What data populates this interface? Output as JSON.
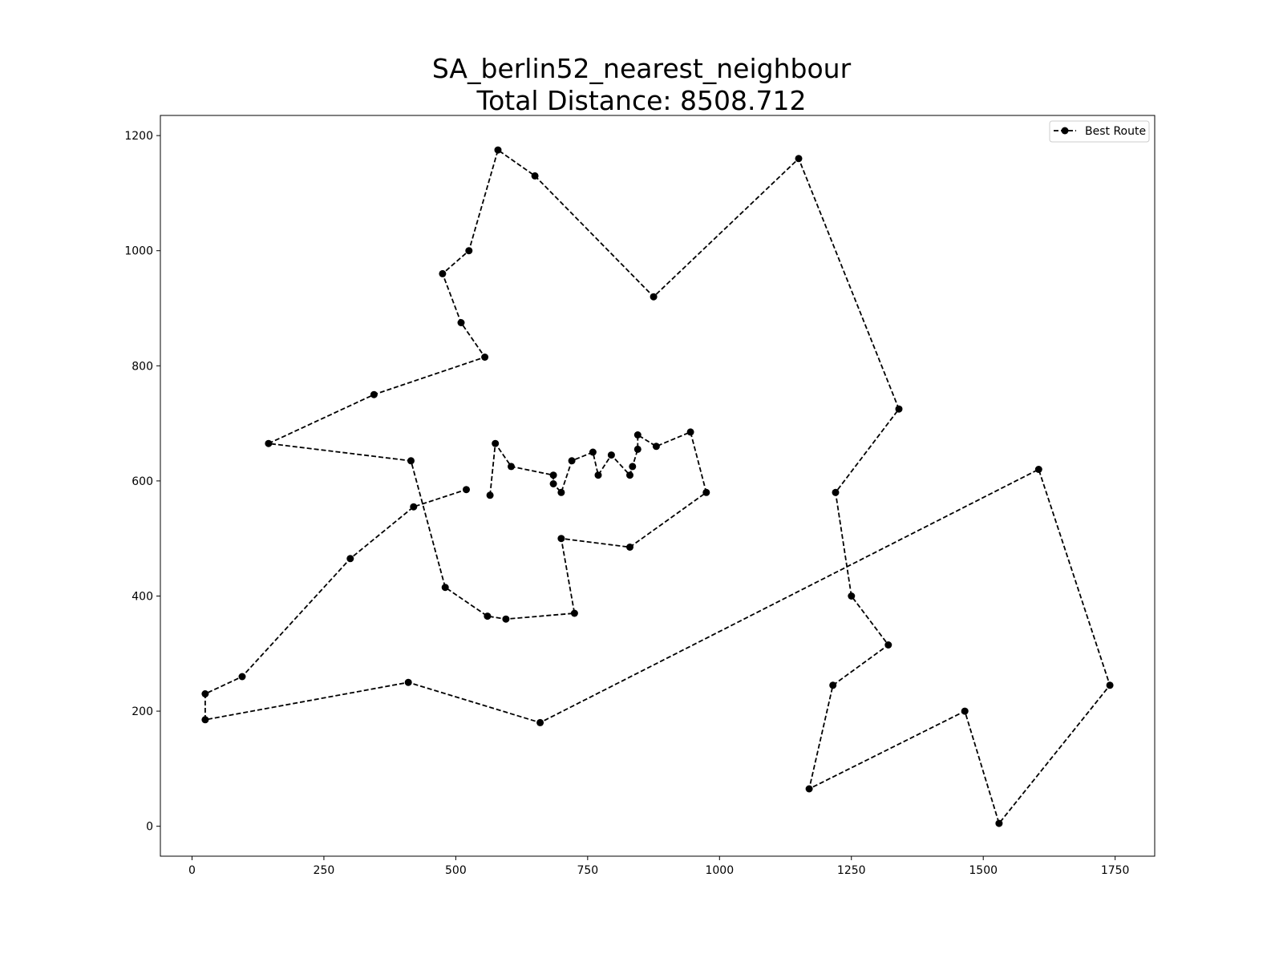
{
  "chart_data": {
    "type": "line",
    "title": "SA_berlin52_nearest_neighbour",
    "subtitle": "Total Distance: 8508.712",
    "xlabel": "",
    "ylabel": "",
    "xlim": [
      -60,
      1825
    ],
    "ylim": [
      -52,
      1235
    ],
    "xticks": [
      0,
      250,
      500,
      750,
      1000,
      1250,
      1500,
      1750
    ],
    "yticks": [
      0,
      200,
      400,
      600,
      800,
      1000,
      1200
    ],
    "grid": false,
    "legend_position": "top-right",
    "series": [
      {
        "name": "Best Route",
        "color": "#000000",
        "line_style": "dashed",
        "marker": "circle",
        "points": [
          [
            565,
            575
          ],
          [
            575,
            665
          ],
          [
            605,
            625
          ],
          [
            685,
            610
          ],
          [
            685,
            595
          ],
          [
            700,
            580
          ],
          [
            720,
            635
          ],
          [
            760,
            650
          ],
          [
            770,
            610
          ],
          [
            795,
            645
          ],
          [
            830,
            610
          ],
          [
            835,
            625
          ],
          [
            845,
            655
          ],
          [
            845,
            680
          ],
          [
            880,
            660
          ],
          [
            945,
            685
          ],
          [
            975,
            580
          ],
          [
            830,
            485
          ],
          [
            700,
            500
          ],
          [
            725,
            370
          ],
          [
            595,
            360
          ],
          [
            560,
            365
          ],
          [
            480,
            415
          ],
          [
            415,
            635
          ],
          [
            145,
            665
          ],
          [
            345,
            750
          ],
          [
            555,
            815
          ],
          [
            510,
            875
          ],
          [
            475,
            960
          ],
          [
            525,
            1000
          ],
          [
            580,
            1175
          ],
          [
            650,
            1130
          ],
          [
            875,
            920
          ],
          [
            1150,
            1160
          ],
          [
            1340,
            725
          ],
          [
            1220,
            580
          ],
          [
            1250,
            400
          ],
          [
            1320,
            315
          ],
          [
            1215,
            245
          ],
          [
            1170,
            65
          ],
          [
            1465,
            200
          ],
          [
            1530,
            5
          ],
          [
            1740,
            245
          ],
          [
            1605,
            620
          ],
          [
            660,
            180
          ],
          [
            410,
            250
          ],
          [
            25,
            185
          ],
          [
            25,
            230
          ],
          [
            95,
            260
          ],
          [
            300,
            465
          ],
          [
            420,
            555
          ],
          [
            520,
            585
          ]
        ]
      }
    ]
  }
}
